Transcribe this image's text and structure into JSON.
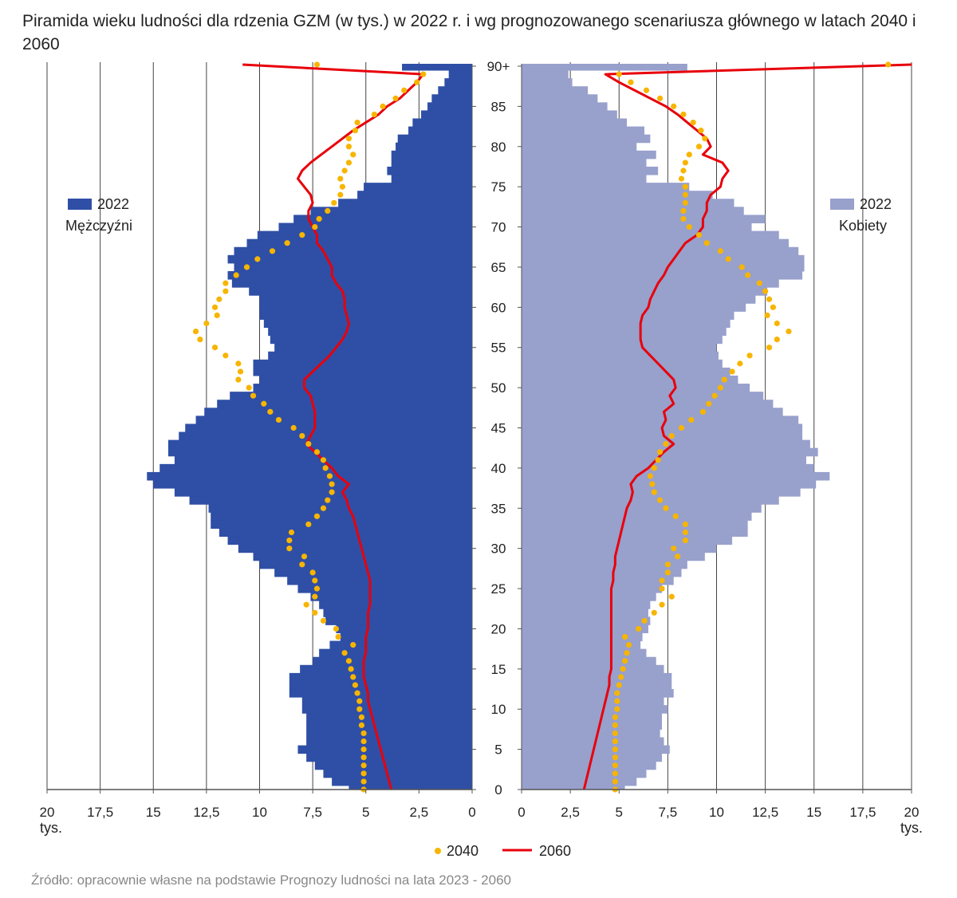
{
  "chart_data": {
    "type": "bar",
    "title": "Piramida wieku ludności dla rdzenia GZM (w tys.) w 2022 r. i wg prognozowanego scenariusza głównego w latach 2040 i 2060",
    "source": "Źródło: opracownie własne na podstawie Prognozy ludności na lata 2023 - 2060",
    "unit_label": "tys.",
    "xlim": [
      0,
      20
    ],
    "x_ticks": [
      "20",
      "17,5",
      "15",
      "12,5",
      "10",
      "7,5",
      "5",
      "2,5",
      "0"
    ],
    "x_ticks_right": [
      "0",
      "2,5",
      "5",
      "7,5",
      "10",
      "12,5",
      "15",
      "17,5",
      "20"
    ],
    "age_ticks": [
      "0",
      "5",
      "10",
      "15",
      "20",
      "25",
      "30",
      "35",
      "40",
      "45",
      "50",
      "55",
      "60",
      "65",
      "70",
      "75",
      "80",
      "85",
      "90+"
    ],
    "ages": "0-89, 90+",
    "grid": true,
    "colors": {
      "men_2022": "#2f4fa6",
      "women_2022": "#98a0cc",
      "s2040": "#f7b500",
      "s2060": "#e8000b"
    },
    "panels": {
      "men": {
        "label": "Mężczyźni",
        "legend_2022": "2022",
        "legend_placement": "middle-left"
      },
      "women": {
        "label": "Kobiety",
        "legend_2022": "2022",
        "legend_placement": "middle-right"
      }
    },
    "legend": {
      "s2040": "2040",
      "s2060": "2060",
      "placement": "bottom"
    },
    "series": [
      {
        "name": "2022",
        "panel": "men",
        "style": "bar",
        "values": [
          5.8,
          6.6,
          7.0,
          7.4,
          7.8,
          8.2,
          7.8,
          7.8,
          7.8,
          7.8,
          8.0,
          8.0,
          8.6,
          8.6,
          8.6,
          8.1,
          7.5,
          7.2,
          6.7,
          6.2,
          6.4,
          6.9,
          7.0,
          7.2,
          7.6,
          8.2,
          8.7,
          9.3,
          10.0,
          10.3,
          11.0,
          11.5,
          11.9,
          12.3,
          12.3,
          12.4,
          13.3,
          14.0,
          15.0,
          15.3,
          14.7,
          14.0,
          14.3,
          14.3,
          13.8,
          13.5,
          13.0,
          12.6,
          12.0,
          11.4,
          10.3,
          10.0,
          10.3,
          10.3,
          9.6,
          9.3,
          9.5,
          9.6,
          9.8,
          10.0,
          10.0,
          10.0,
          10.5,
          11.3,
          11.5,
          11.2,
          11.5,
          11.2,
          10.6,
          10.1,
          9.1,
          8.4,
          7.6,
          6.3,
          5.4,
          5.1,
          3.8,
          4.0,
          3.8,
          3.8,
          3.6,
          3.5,
          3.0,
          2.8,
          2.4,
          2.1,
          1.9,
          1.6,
          1.3,
          1.1,
          3.3
        ]
      },
      {
        "name": "2040",
        "panel": "men",
        "style": "dots",
        "values": [
          5.1,
          5.1,
          5.1,
          5.1,
          5.1,
          5.1,
          5.1,
          5.1,
          5.2,
          5.2,
          5.3,
          5.3,
          5.4,
          5.5,
          5.6,
          5.7,
          5.8,
          6.0,
          5.6,
          6.3,
          6.4,
          7.0,
          7.4,
          7.8,
          7.4,
          7.3,
          7.4,
          7.5,
          8.0,
          7.9,
          8.6,
          8.6,
          8.5,
          7.7,
          7.3,
          7.0,
          6.8,
          6.6,
          6.6,
          6.7,
          6.9,
          7.0,
          7.3,
          7.7,
          8.0,
          8.4,
          9.1,
          9.5,
          9.8,
          10.3,
          10.5,
          11.0,
          10.9,
          11.0,
          11.6,
          12.1,
          12.8,
          13.0,
          12.5,
          12.0,
          12.1,
          11.9,
          11.6,
          11.6,
          11.1,
          10.6,
          10.1,
          9.4,
          8.7,
          8.0,
          7.4,
          7.2,
          6.8,
          6.5,
          6.2,
          6.1,
          6.2,
          6.0,
          5.8,
          5.6,
          5.8,
          5.8,
          5.5,
          5.4,
          4.6,
          4.2,
          3.6,
          3.2,
          2.6,
          2.3,
          7.3
        ]
      },
      {
        "name": "2060",
        "panel": "men",
        "style": "line",
        "values": [
          3.8,
          3.9,
          4.0,
          4.1,
          4.2,
          4.3,
          4.4,
          4.5,
          4.6,
          4.7,
          4.8,
          4.9,
          4.9,
          5.0,
          5.1,
          5.1,
          5.1,
          5.0,
          5.0,
          5.0,
          4.9,
          4.9,
          4.9,
          4.8,
          4.8,
          4.8,
          4.8,
          4.9,
          5.0,
          5.1,
          5.2,
          5.3,
          5.4,
          5.5,
          5.6,
          5.8,
          5.9,
          6.1,
          5.8,
          6.3,
          6.6,
          7.0,
          7.4,
          7.8,
          7.6,
          7.4,
          7.4,
          7.4,
          7.5,
          7.6,
          7.9,
          7.9,
          7.5,
          7.1,
          6.7,
          6.4,
          6.1,
          5.9,
          5.8,
          5.9,
          6.0,
          6.0,
          6.1,
          6.4,
          6.6,
          6.6,
          6.8,
          7.0,
          7.3,
          7.3,
          7.5,
          7.7,
          7.7,
          7.5,
          7.6,
          7.9,
          8.2,
          8.0,
          7.6,
          7.1,
          6.6,
          6.1,
          5.6,
          5.0,
          4.4,
          4.0,
          3.4,
          3.0,
          2.6,
          2.3,
          10.8
        ]
      },
      {
        "name": "2022",
        "panel": "women",
        "style": "bar",
        "values": [
          5.3,
          5.9,
          6.4,
          6.9,
          7.2,
          7.6,
          7.3,
          7.1,
          7.2,
          7.2,
          7.5,
          7.3,
          7.8,
          7.7,
          7.7,
          7.3,
          6.9,
          6.4,
          6.1,
          6.2,
          6.5,
          6.6,
          6.5,
          6.6,
          6.9,
          7.2,
          7.8,
          8.2,
          8.5,
          9.4,
          10.0,
          10.8,
          11.6,
          11.6,
          11.8,
          12.3,
          13.2,
          14.3,
          15.1,
          15.8,
          15.0,
          14.6,
          15.2,
          14.8,
          14.4,
          14.4,
          14.2,
          13.4,
          12.9,
          12.4,
          11.7,
          11.1,
          10.7,
          10.3,
          10.1,
          10.0,
          10.3,
          10.5,
          10.7,
          10.9,
          11.5,
          12.0,
          12.6,
          13.2,
          14.4,
          14.5,
          14.5,
          14.2,
          13.7,
          13.2,
          11.8,
          12.5,
          11.4,
          10.9,
          9.8,
          8.6,
          6.4,
          7.0,
          6.4,
          6.9,
          5.9,
          6.6,
          6.3,
          5.4,
          4.9,
          4.4,
          3.9,
          3.4,
          2.6,
          2.4,
          8.5
        ]
      },
      {
        "name": "2040",
        "panel": "women",
        "style": "dots",
        "values": [
          4.8,
          4.8,
          4.8,
          4.8,
          4.8,
          4.8,
          4.8,
          4.8,
          4.8,
          4.8,
          4.9,
          4.9,
          4.9,
          5.0,
          5.1,
          5.2,
          5.3,
          5.4,
          5.5,
          5.3,
          6.0,
          6.3,
          6.8,
          7.2,
          7.7,
          7.2,
          7.2,
          7.5,
          7.5,
          8.0,
          7.8,
          8.4,
          8.4,
          8.4,
          7.9,
          7.4,
          7.1,
          6.8,
          6.7,
          6.6,
          6.8,
          7.0,
          7.1,
          7.4,
          7.7,
          8.2,
          8.7,
          9.3,
          9.6,
          9.9,
          10.2,
          10.4,
          10.8,
          11.2,
          11.7,
          12.7,
          13.1,
          13.7,
          13.1,
          12.6,
          12.9,
          12.7,
          12.5,
          12.2,
          11.6,
          11.3,
          10.6,
          10.2,
          9.5,
          9.1,
          8.6,
          8.3,
          8.3,
          8.4,
          8.4,
          8.4,
          8.2,
          8.3,
          8.4,
          8.6,
          9.1,
          9.4,
          9.2,
          8.8,
          8.3,
          7.8,
          7.1,
          6.4,
          5.6,
          5.0,
          18.8
        ]
      },
      {
        "name": "2060",
        "panel": "women",
        "style": "line",
        "values": [
          3.2,
          3.3,
          3.4,
          3.5,
          3.6,
          3.7,
          3.8,
          3.9,
          4.0,
          4.1,
          4.2,
          4.3,
          4.4,
          4.5,
          4.5,
          4.6,
          4.6,
          4.6,
          4.6,
          4.6,
          4.6,
          4.6,
          4.6,
          4.6,
          4.6,
          4.6,
          4.7,
          4.7,
          4.8,
          4.8,
          4.9,
          5.0,
          5.1,
          5.2,
          5.3,
          5.4,
          5.6,
          5.7,
          5.6,
          5.9,
          6.5,
          6.9,
          7.3,
          7.8,
          7.3,
          7.2,
          7.4,
          7.3,
          7.8,
          7.6,
          7.9,
          7.8,
          7.4,
          7.0,
          6.6,
          6.2,
          6.1,
          6.1,
          6.1,
          6.2,
          6.5,
          6.6,
          6.8,
          7.0,
          7.3,
          7.5,
          7.8,
          8.1,
          8.4,
          9.0,
          9.3,
          9.3,
          9.5,
          9.5,
          9.7,
          10.2,
          10.3,
          10.6,
          10.3,
          9.3,
          9.7,
          9.5,
          9.0,
          8.5,
          8.0,
          7.4,
          6.6,
          5.8,
          5.0,
          4.3,
          20.0
        ]
      }
    ]
  }
}
